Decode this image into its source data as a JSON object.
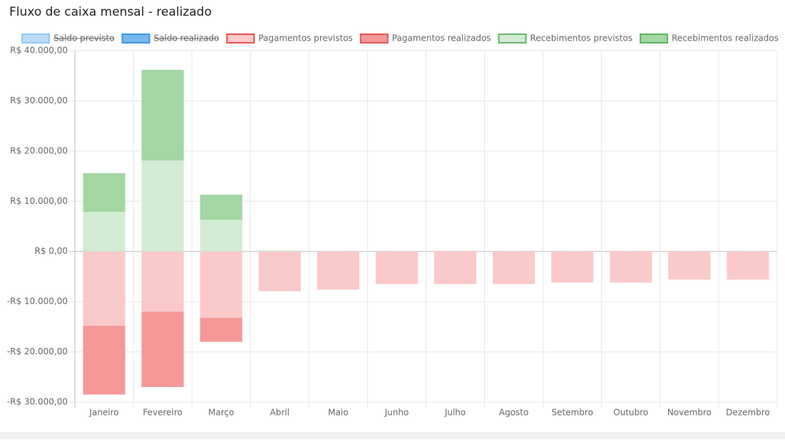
{
  "chart_data": {
    "type": "bar",
    "stacked": true,
    "title": "Fluxo de caixa mensal - realizado",
    "categories": [
      "Janeiro",
      "Fevereiro",
      "Março",
      "Abril",
      "Maio",
      "Junho",
      "Julho",
      "Agosto",
      "Setembro",
      "Outubro",
      "Novembro",
      "Dezembro"
    ],
    "series": [
      {
        "name": "Saldo previsto",
        "color": "#bcdcf4",
        "border": "#90c8f0",
        "hidden": true
      },
      {
        "name": "Saldo realizado",
        "color": "#75b8ec",
        "border": "#3a95e0",
        "hidden": true
      },
      {
        "name": "Pagamentos previstos",
        "color": "#fac9c9",
        "border": "#e84d4d",
        "values": [
          -14800,
          -12000,
          -13200,
          -7900,
          -7600,
          -6500,
          -6500,
          -6500,
          -6200,
          -6200,
          -5600,
          -5600
        ]
      },
      {
        "name": "Pagamentos realizados",
        "color": "#f59797",
        "border": "#e05555",
        "values": [
          -13700,
          -15000,
          -4800,
          0,
          0,
          0,
          0,
          0,
          0,
          0,
          0,
          0
        ]
      },
      {
        "name": "Recebimentos previstos",
        "color": "#d2ebd3",
        "border": "#62b866",
        "values": [
          7900,
          18100,
          6300,
          200,
          0,
          0,
          0,
          0,
          0,
          0,
          0,
          0
        ]
      },
      {
        "name": "Recebimentos realizados",
        "color": "#a2d6a2",
        "border": "#5cb55f",
        "values": [
          7700,
          18100,
          5000,
          0,
          0,
          0,
          0,
          0,
          0,
          0,
          0,
          0
        ]
      }
    ],
    "ylim": [
      -30000,
      40000
    ],
    "yticks": [
      {
        "value": 40000,
        "label": "R$ 40.000,00"
      },
      {
        "value": 30000,
        "label": "R$ 30.000,00"
      },
      {
        "value": 20000,
        "label": "R$ 20.000,00"
      },
      {
        "value": 10000,
        "label": "R$ 10.000,00"
      },
      {
        "value": 0,
        "label": "R$ 0,00"
      },
      {
        "value": -10000,
        "label": "-R$ 10.000,00"
      },
      {
        "value": -20000,
        "label": "-R$ 20.000,00"
      },
      {
        "value": -30000,
        "label": "-R$ 30.000,00"
      }
    ],
    "grid": true,
    "legend": "top"
  }
}
